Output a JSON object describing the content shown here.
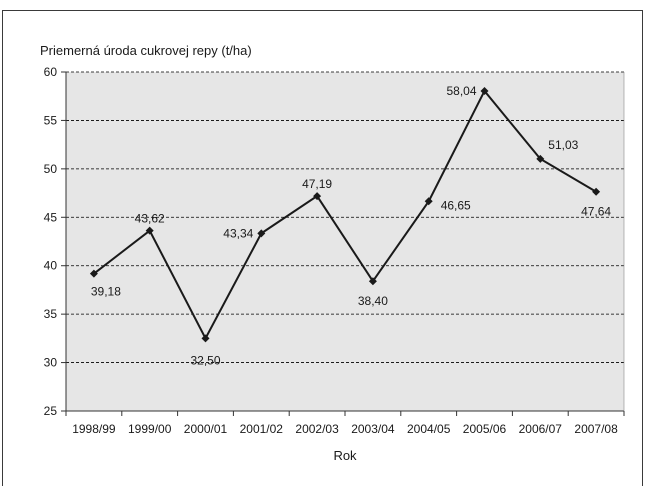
{
  "chart_data": {
    "type": "line",
    "title": "Priemerná úroda cukrovej repy (t/ha)",
    "xlabel": "Rok",
    "ylabel": "",
    "categories": [
      "1998/99",
      "1999/00",
      "2000/01",
      "2001/02",
      "2002/03",
      "2003/04",
      "2004/05",
      "2005/06",
      "2006/07",
      "2007/08"
    ],
    "values": [
      39.18,
      43.62,
      32.5,
      43.34,
      47.19,
      38.4,
      46.65,
      58.04,
      51.03,
      47.64
    ],
    "data_labels": [
      "39,18",
      "43,62",
      "32,50",
      "43,34",
      "47,19",
      "38,40",
      "46,65",
      "58,04",
      "51,03",
      "47,64"
    ],
    "ylim": [
      25,
      60
    ],
    "yticks": [
      25,
      30,
      35,
      40,
      45,
      50,
      55,
      60
    ],
    "grid": "horizontal-dashed",
    "legend": "none",
    "colors": {
      "plot_background": "#e6e6e6",
      "line": "#1a1a1a",
      "marker": "#1a1a1a",
      "gridline": "#000000"
    }
  }
}
